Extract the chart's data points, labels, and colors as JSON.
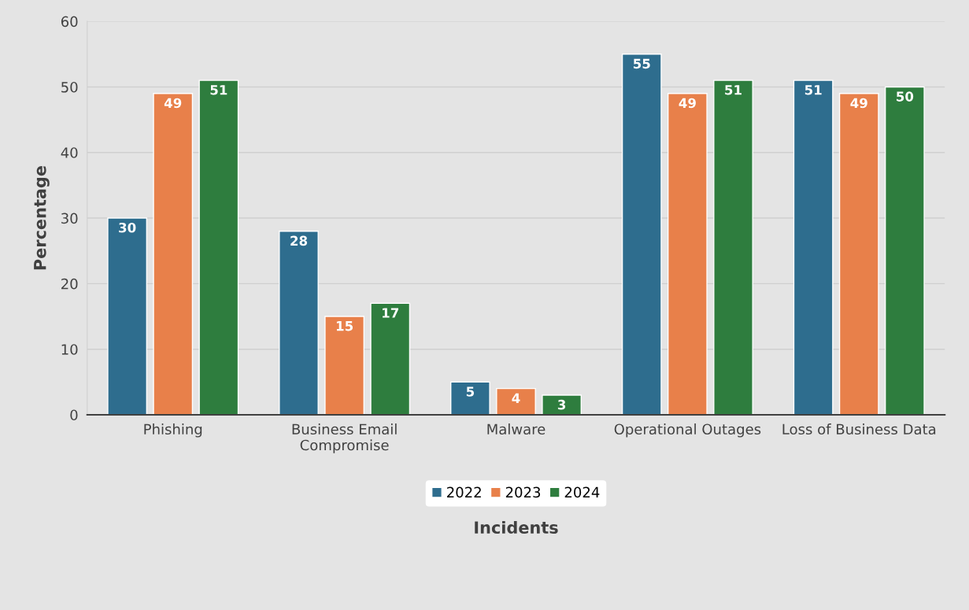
{
  "chart_data": {
    "type": "bar",
    "xlabel": "Incidents",
    "ylabel": "Percentage",
    "categories": [
      "Phishing",
      "Business Email\nCompromise",
      "Malware",
      "Operational Outages",
      "Loss of Business Data"
    ],
    "series": [
      {
        "name": "2022",
        "color": "#2e6d8e",
        "values": [
          30,
          28,
          5,
          55,
          51
        ]
      },
      {
        "name": "2023",
        "color": "#e8804a",
        "values": [
          49,
          15,
          4,
          49,
          49
        ]
      },
      {
        "name": "2024",
        "color": "#2e7d3e",
        "values": [
          51,
          17,
          3,
          51,
          50
        ]
      }
    ],
    "ylim": [
      0,
      60
    ],
    "yticks": [
      0,
      10,
      20,
      30,
      40,
      50,
      60
    ],
    "grid": "y",
    "legend": "bottom",
    "data_labels": true
  }
}
